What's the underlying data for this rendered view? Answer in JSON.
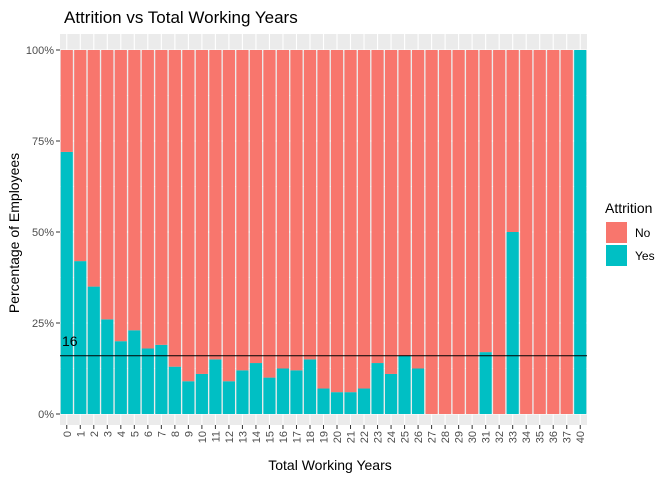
{
  "chart_data": {
    "type": "bar",
    "stacked": "percent",
    "title": "Attrition vs Total Working Years",
    "xlabel": "Total Working Years",
    "ylabel": "Percentage of Employees",
    "ylim": [
      0,
      1
    ],
    "y_ticks": [
      "0%",
      "25%",
      "50%",
      "75%",
      "100%"
    ],
    "y_tick_values": [
      0,
      0.25,
      0.5,
      0.75,
      1.0
    ],
    "categories": [
      "0",
      "1",
      "2",
      "3",
      "4",
      "5",
      "6",
      "7",
      "8",
      "9",
      "10",
      "11",
      "12",
      "13",
      "14",
      "15",
      "16",
      "17",
      "18",
      "19",
      "20",
      "21",
      "22",
      "23",
      "24",
      "25",
      "26",
      "27",
      "28",
      "29",
      "30",
      "31",
      "32",
      "33",
      "34",
      "35",
      "36",
      "37",
      "40"
    ],
    "series": [
      {
        "name": "No",
        "color": "#F8766D",
        "values": [
          0.28,
          0.58,
          0.65,
          0.74,
          0.8,
          0.77,
          0.82,
          0.81,
          0.87,
          0.91,
          0.89,
          0.85,
          0.91,
          0.88,
          0.86,
          0.9,
          0.875,
          0.88,
          0.85,
          0.93,
          0.94,
          0.94,
          0.93,
          0.86,
          0.89,
          0.84,
          0.875,
          1.0,
          1.0,
          1.0,
          1.0,
          0.83,
          1.0,
          0.5,
          1.0,
          1.0,
          1.0,
          1.0,
          0.0
        ]
      },
      {
        "name": "Yes",
        "color": "#00BFC4",
        "values": [
          0.72,
          0.42,
          0.35,
          0.26,
          0.2,
          0.23,
          0.18,
          0.19,
          0.13,
          0.09,
          0.11,
          0.15,
          0.09,
          0.12,
          0.14,
          0.1,
          0.125,
          0.12,
          0.15,
          0.07,
          0.06,
          0.06,
          0.07,
          0.14,
          0.11,
          0.16,
          0.125,
          0.0,
          0.0,
          0.0,
          0.0,
          0.17,
          0.0,
          0.5,
          0.0,
          0.0,
          0.0,
          0.0,
          1.0
        ]
      }
    ],
    "reference_line": {
      "value": 0.16,
      "label": "16",
      "color": "#000000"
    },
    "legend": {
      "title": "Attrition",
      "position": "right",
      "entries": [
        "No",
        "Yes"
      ]
    },
    "grid": true,
    "panel_background": "#EBEBEB"
  }
}
